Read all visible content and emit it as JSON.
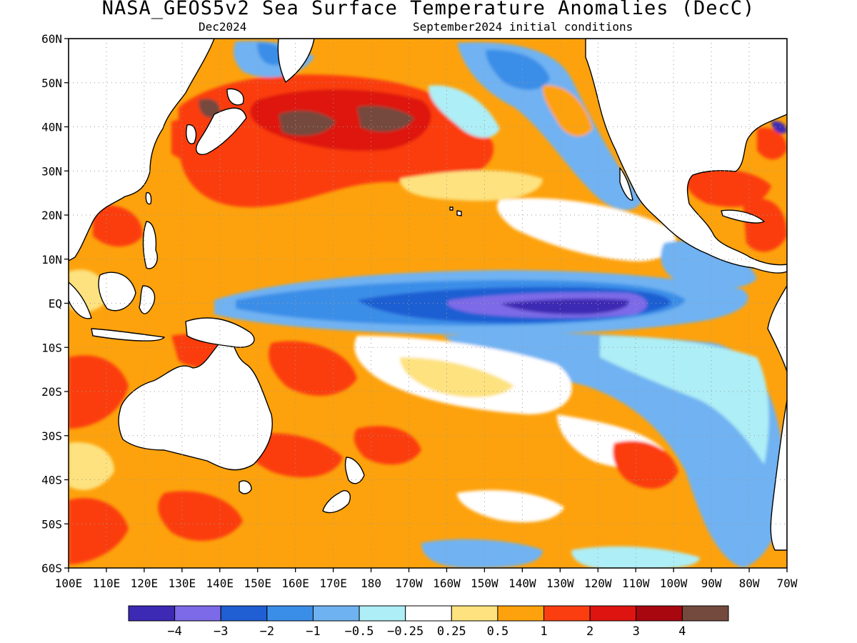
{
  "title": "NASA_GEOS5v2 Sea Surface Temperature Anomalies (DecC)",
  "subtitle_left": "Dec2024",
  "subtitle_right": "September2024 initial conditions",
  "map": {
    "lon_range": [
      100,
      290
    ],
    "lat_range": [
      -60,
      60
    ],
    "grid": "dotted",
    "lat_ticks": [
      {
        "lat": 60,
        "label": "60N"
      },
      {
        "lat": 50,
        "label": "50N"
      },
      {
        "lat": 40,
        "label": "40N"
      },
      {
        "lat": 30,
        "label": "30N"
      },
      {
        "lat": 20,
        "label": "20N"
      },
      {
        "lat": 10,
        "label": "10N"
      },
      {
        "lat": 0,
        "label": "EQ"
      },
      {
        "lat": -10,
        "label": "10S"
      },
      {
        "lat": -20,
        "label": "20S"
      },
      {
        "lat": -30,
        "label": "30S"
      },
      {
        "lat": -40,
        "label": "40S"
      },
      {
        "lat": -50,
        "label": "50S"
      },
      {
        "lat": -60,
        "label": "60S"
      }
    ],
    "lon_ticks": [
      {
        "lon": 100,
        "label": "100E"
      },
      {
        "lon": 110,
        "label": "110E"
      },
      {
        "lon": 120,
        "label": "120E"
      },
      {
        "lon": 130,
        "label": "130E"
      },
      {
        "lon": 140,
        "label": "140E"
      },
      {
        "lon": 150,
        "label": "150E"
      },
      {
        "lon": 160,
        "label": "160E"
      },
      {
        "lon": 170,
        "label": "170E"
      },
      {
        "lon": 180,
        "label": "180"
      },
      {
        "lon": 190,
        "label": "170W"
      },
      {
        "lon": 200,
        "label": "160W"
      },
      {
        "lon": 210,
        "label": "150W"
      },
      {
        "lon": 220,
        "label": "140W"
      },
      {
        "lon": 230,
        "label": "130W"
      },
      {
        "lon": 240,
        "label": "120W"
      },
      {
        "lon": 250,
        "label": "110W"
      },
      {
        "lon": 260,
        "label": "100W"
      },
      {
        "lon": 270,
        "label": "90W"
      },
      {
        "lon": 280,
        "label": "80W"
      },
      {
        "lon": 290,
        "label": "70W"
      }
    ]
  },
  "colorbar": {
    "colors": [
      "#3c29b4",
      "#7d6ae8",
      "#1f5fd3",
      "#3a8ee8",
      "#6fb2f2",
      "#aeeef6",
      "#ffffff",
      "#fde27f",
      "#fda20c",
      "#fb3e10",
      "#de1410",
      "#a8070f",
      "#744a3e"
    ],
    "labels": [
      "-4",
      "-3",
      "-2",
      "-1",
      "-0.5",
      "-0.25",
      "0.25",
      "0.5",
      "1",
      "2",
      "3",
      "4"
    ]
  },
  "land_color": "#ffffff",
  "coast_color": "#000000"
}
